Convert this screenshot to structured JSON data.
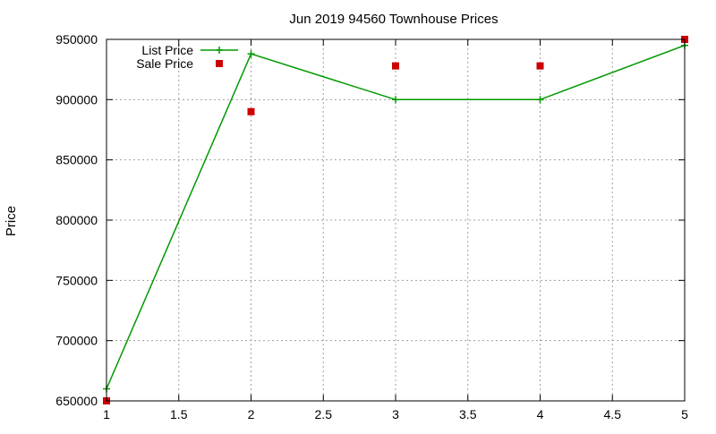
{
  "chart_data": {
    "type": "line",
    "title": "Jun 2019 94560 Townhouse Prices",
    "xlabel": "",
    "ylabel": "Price",
    "xlim": [
      1,
      5
    ],
    "ylim": [
      650000,
      950000
    ],
    "xticks": [
      1,
      1.5,
      2,
      2.5,
      3,
      3.5,
      4,
      4.5,
      5
    ],
    "xtick_labels": [
      "1",
      "1.5",
      "2",
      "2.5",
      "3",
      "3.5",
      "4",
      "4.5",
      "5"
    ],
    "yticks": [
      650000,
      700000,
      750000,
      800000,
      850000,
      900000,
      950000
    ],
    "ytick_labels": [
      "650000",
      "700000",
      "750000",
      "800000",
      "850000",
      "900000",
      "950000"
    ],
    "grid": true,
    "legend_position": "top-left",
    "series": [
      {
        "name": "List Price",
        "style": "line-with-plus-markers",
        "color": "#009900",
        "x": [
          1,
          2,
          3,
          4,
          5
        ],
        "values": [
          660000,
          938000,
          900000,
          900000,
          945000
        ]
      },
      {
        "name": "Sale Price",
        "style": "square-markers",
        "color": "#cc0000",
        "x": [
          1,
          2,
          3,
          4,
          5
        ],
        "values": [
          650000,
          890000,
          928000,
          928000,
          950000
        ]
      }
    ]
  }
}
